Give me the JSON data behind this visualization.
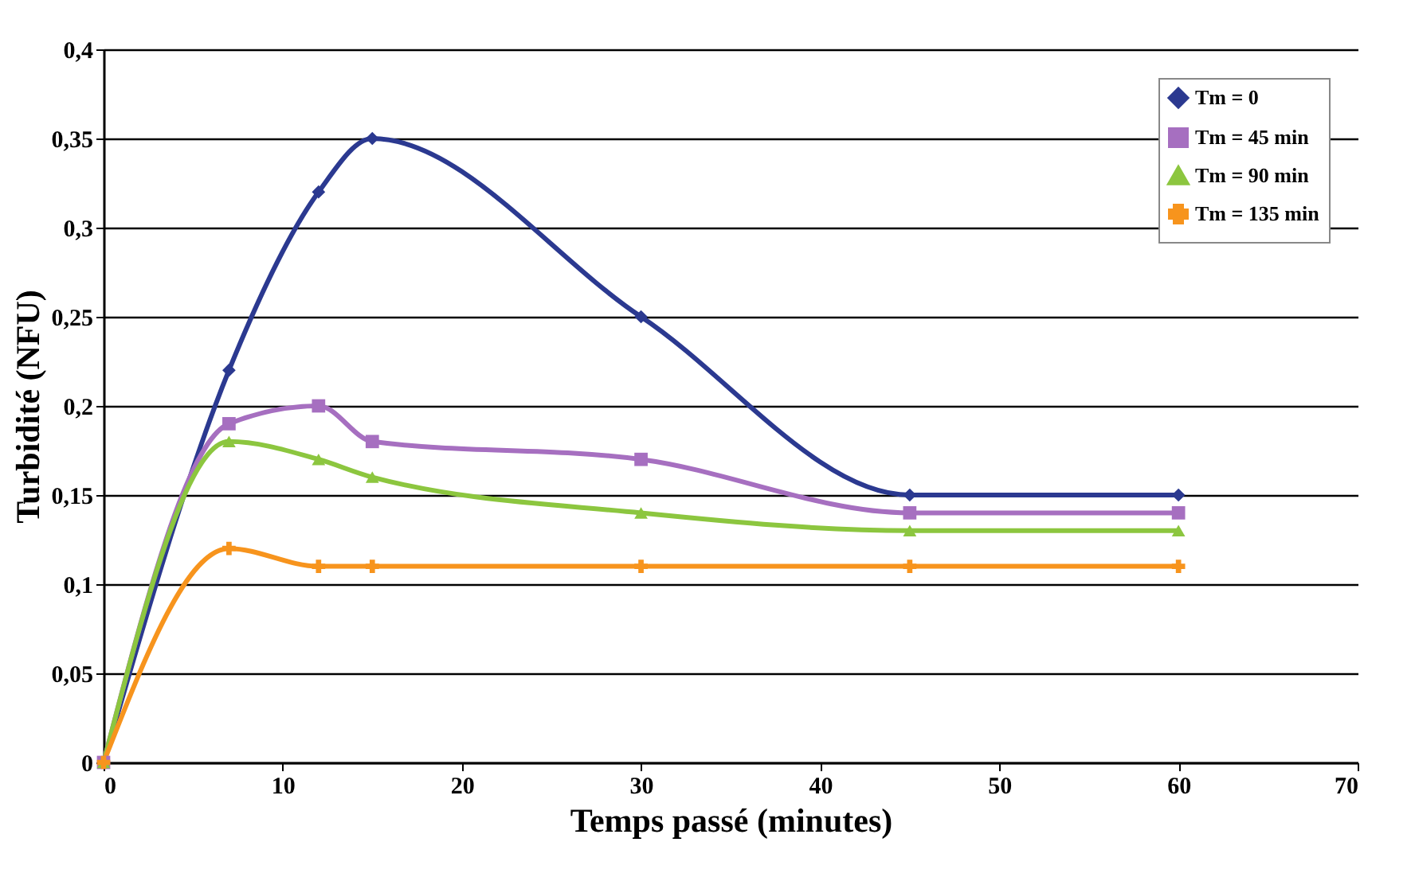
{
  "chart_data": {
    "type": "line",
    "xlabel": "Temps passé (minutes)",
    "ylabel": "Turbidité (NFU)",
    "x": [
      0,
      7,
      12,
      15,
      30,
      45,
      60
    ],
    "series": [
      {
        "name": "Tm = 0",
        "color": "#2b3990",
        "marker": "diamond",
        "values": [
          0,
          0.22,
          0.32,
          0.35,
          0.25,
          0.15,
          0.15
        ]
      },
      {
        "name": "Tm = 45 min",
        "color": "#a66fc0",
        "marker": "square",
        "values": [
          0,
          0.19,
          0.2,
          0.18,
          0.17,
          0.14,
          0.14
        ]
      },
      {
        "name": "Tm = 90 min",
        "color": "#8cc63f",
        "marker": "triangle",
        "values": [
          0,
          0.18,
          0.17,
          0.16,
          0.14,
          0.13,
          0.13
        ]
      },
      {
        "name": "Tm = 135 min",
        "color": "#f7941d",
        "marker": "cross",
        "values": [
          0,
          0.12,
          0.11,
          0.11,
          0.11,
          0.11,
          0.11
        ]
      }
    ],
    "xlim": [
      0,
      70
    ],
    "xticks": [
      0,
      10,
      20,
      30,
      40,
      50,
      60,
      70
    ],
    "ylim": [
      0,
      0.4
    ],
    "yticks": [
      0,
      {
        "value": 0.05,
        "label": "0,05"
      },
      {
        "value": 0.1,
        "label": "0,1"
      },
      {
        "value": 0.15,
        "label": "0,15"
      },
      {
        "value": 0.2,
        "label": "0,2"
      },
      {
        "value": 0.25,
        "label": "0,25"
      },
      {
        "value": 0.3,
        "label": "0,3"
      },
      {
        "value": 0.35,
        "label": "0,35"
      },
      {
        "value": 0.4,
        "label": "0,4"
      }
    ],
    "grid": "y",
    "legend": "top right",
    "line_style": "solid"
  }
}
